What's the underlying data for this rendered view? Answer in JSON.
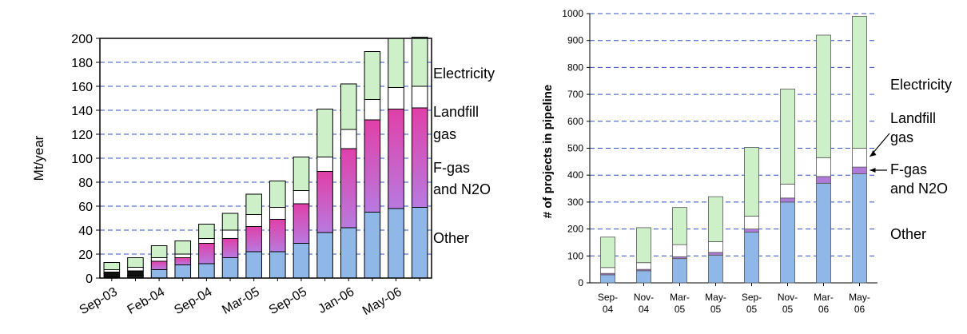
{
  "chart_data": [
    {
      "type": "bar",
      "stacked": true,
      "ylabel": "Mt/year",
      "ylim": [
        0,
        200
      ],
      "y_ticks": [
        "0",
        "20",
        "40",
        "60",
        "80",
        "100",
        "120",
        "140",
        "160",
        "180",
        "200"
      ],
      "x_tick_labels": [
        "Sep-03",
        "Feb-04",
        "Sep-04",
        "Mar-05",
        "Sep-05",
        "Jan-06",
        "May-06"
      ],
      "grid": "horizontal dashed",
      "legend_labels": [
        "Electricity",
        "Landfill gas",
        "F-gas and N2O",
        "Other"
      ],
      "categories": [
        "Sep-03",
        "",
        "Feb-04",
        "",
        "Sep-04",
        "",
        "Mar-05",
        "",
        "Sep-05",
        "",
        "Jan-06",
        "",
        "May-06",
        ""
      ],
      "series": [
        {
          "name": "Other",
          "values": [
            1,
            2,
            7,
            11,
            12,
            17,
            22,
            22,
            29,
            38,
            42,
            55,
            58,
            59
          ]
        },
        {
          "name": "F-gas and N2O",
          "values": [
            4,
            4,
            7,
            6,
            17,
            16,
            21,
            27,
            33,
            51,
            66,
            77,
            83,
            83
          ]
        },
        {
          "name": "Landfill gas",
          "values": [
            2,
            3,
            3,
            3,
            4,
            7,
            10,
            10,
            11,
            12,
            16,
            17,
            18,
            18
          ]
        },
        {
          "name": "Electricity",
          "values": [
            6,
            8,
            10,
            11,
            12,
            14,
            17,
            22,
            28,
            40,
            38,
            40,
            41,
            41
          ]
        }
      ],
      "colors": {
        "Other": "#8fb8e8",
        "F-gas and N2O": "#d070d8",
        "Landfill gas": "#ffffff",
        "Electricity": "#cdf0c8"
      }
    },
    {
      "type": "bar",
      "stacked": true,
      "ylabel": "# of projects in pipeline",
      "ylim": [
        0,
        1000
      ],
      "y_ticks": [
        "0",
        "100",
        "200",
        "300",
        "400",
        "500",
        "600",
        "700",
        "800",
        "900",
        "1000"
      ],
      "categories": [
        [
          "Sep-",
          "04"
        ],
        [
          "Nov-",
          "04"
        ],
        [
          "Mar-",
          "05"
        ],
        [
          "May-",
          "05"
        ],
        [
          "Sep-",
          "05"
        ],
        [
          "Nov-",
          "05"
        ],
        [
          "Mar-",
          "06"
        ],
        [
          "May-",
          "06"
        ]
      ],
      "grid": "horizontal dashed",
      "legend_labels": [
        "Electricity",
        "Landfill gas",
        "F-gas and N2O",
        "Other"
      ],
      "series": [
        {
          "name": "Other",
          "values": [
            30,
            45,
            90,
            103,
            188,
            300,
            370,
            405
          ]
        },
        {
          "name": "F-gas and N2O",
          "values": [
            5,
            5,
            7,
            10,
            12,
            15,
            25,
            25
          ]
        },
        {
          "name": "Landfill gas",
          "values": [
            22,
            25,
            45,
            40,
            48,
            52,
            70,
            70
          ]
        },
        {
          "name": "Electricity",
          "values": [
            113,
            130,
            138,
            167,
            255,
            353,
            455,
            490
          ]
        }
      ],
      "colors": {
        "Other": "#8fb8e8",
        "F-gas and N2O": "#b07ad8",
        "Landfill gas": "#ffffff",
        "Electricity": "#cdf0c8"
      }
    }
  ]
}
